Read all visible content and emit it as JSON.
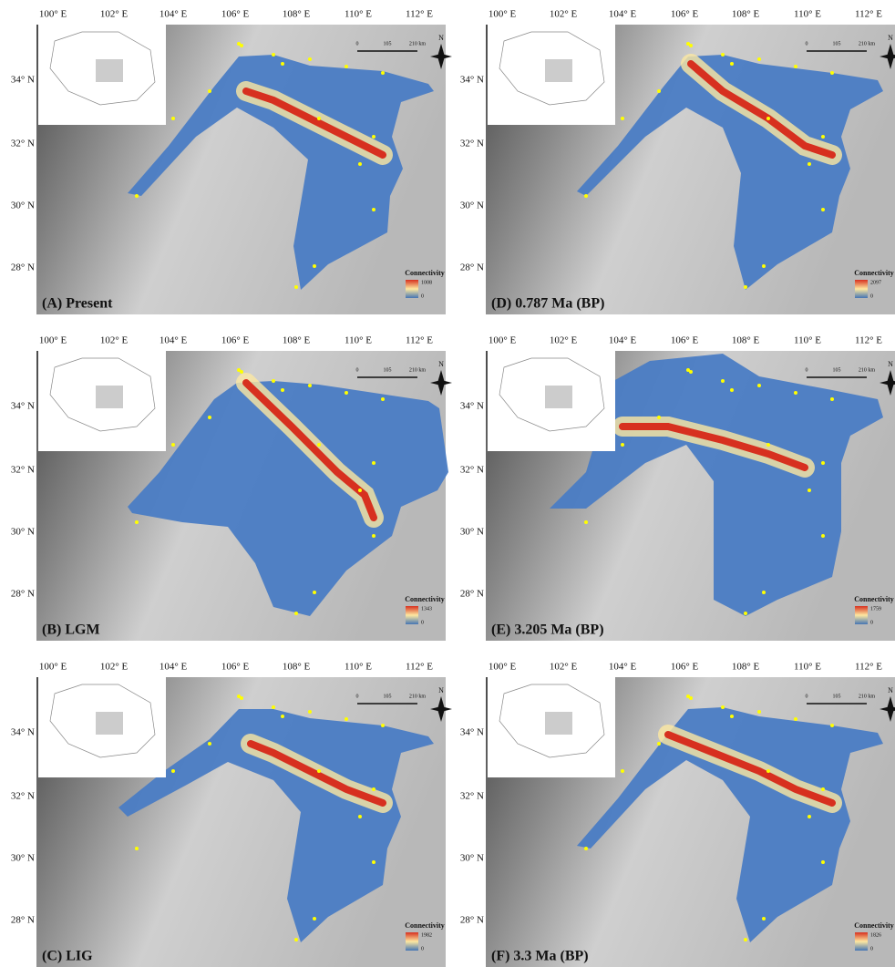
{
  "x_ticks": [
    "100° E",
    "102° E",
    "104° E",
    "106° E",
    "108° E",
    "110° E",
    "112° E"
  ],
  "y_ticks": [
    "34° N",
    "32° N",
    "30° N",
    "28° N"
  ],
  "scale_bar": [
    "0",
    "105",
    "210 km"
  ],
  "north": "N",
  "legend_title": "Connectivity",
  "legend_min": "0",
  "panels": [
    {
      "label": "(A) Present",
      "max": "1008"
    },
    {
      "label": "(B) LGM",
      "max": "1343"
    },
    {
      "label": "(C) LIG",
      "max": "1982"
    },
    {
      "label": "(D) 0.787 Ma (BP)",
      "max": "2097"
    },
    {
      "label": "(E) 3.205 Ma (BP)",
      "max": "1759"
    },
    {
      "label": "(F) 3.3 Ma (BP)",
      "max": "1826"
    }
  ]
}
